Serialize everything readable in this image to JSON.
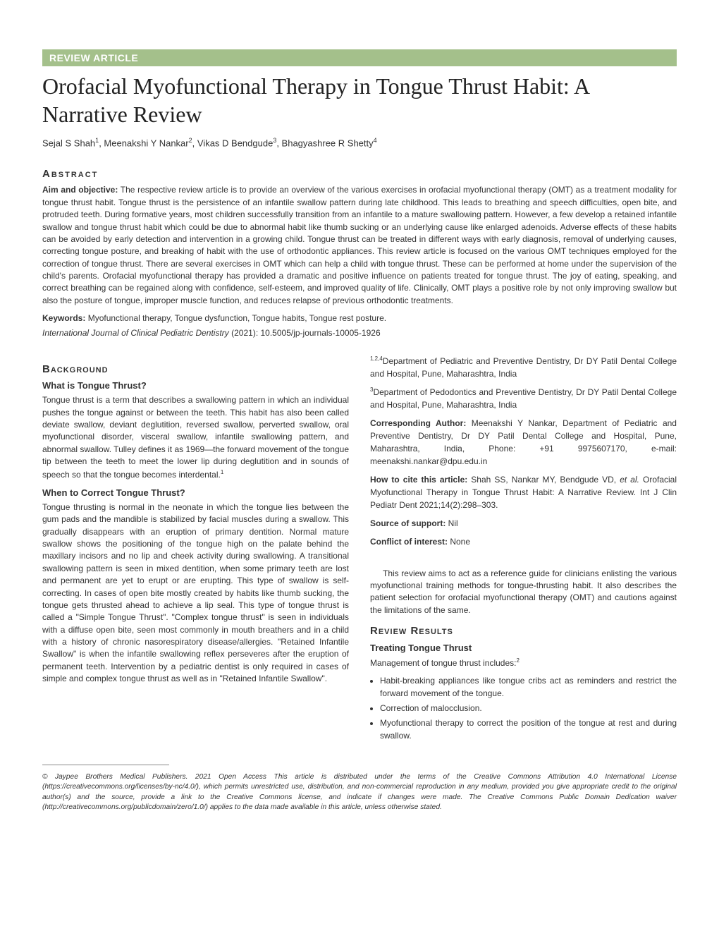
{
  "banner": {
    "label": "REVIEW ARTICLE",
    "bg": "#a4c08b"
  },
  "title": "Orofacial Myofunctional Therapy in Tongue Thrust Habit: A Narrative Review",
  "authors_html": "Sejal S Shah<sup>1</sup>, Meenakshi Y Nankar<sup>2</sup>, Vikas D Bendgude<sup>3</sup>, Bhagyashree R Shetty<sup>4</sup>",
  "abstract": {
    "heading": "Abstract",
    "aim_label": "Aim and objective:",
    "aim_text": " The respective review article is to provide an overview of the various exercises in orofacial myofunctional therapy (OMT) as a treatment modality for tongue thrust habit. Tongue thrust is the persistence of an infantile swallow pattern during late childhood. This leads to breathing and speech difficulties, open bite, and protruded teeth. During formative years, most children successfully transition from an infantile to a mature swallowing pattern. However, a few develop a retained infantile swallow and tongue thrust habit which could be due to abnormal habit like thumb sucking or an underlying cause like enlarged adenoids. Adverse effects of these habits can be avoided by early detection and intervention in a growing child. Tongue thrust can be treated in different ways with early diagnosis, removal of underlying causes, correcting tongue posture, and breaking of habit with the use of orthodontic appliances. This review article is focused on the various OMT techniques employed for the correction of tongue thrust. There are several exercises in OMT which can help a child with tongue thrust. These can be performed at home under the supervision of the child's parents. Orofacial myofunctional therapy has provided a dramatic and positive influence on patients treated for tongue thrust. The joy of eating, speaking, and correct breathing can be regained along with confidence, self-esteem, and improved quality of life. Clinically, OMT plays a positive role by not only improving swallow but also the posture of tongue, improper muscle function, and reduces relapse of previous orthodontic treatments.",
    "keywords_label": "Keywords:",
    "keywords_text": " Myofunctional therapy, Tongue dysfunction, Tongue habits, Tongue rest posture.",
    "journal": "International Journal of Clinical Pediatric Dentistry",
    "year_doi": " (2021): 10.5005/jp-journals-10005-1926"
  },
  "left": {
    "bg_heading": "Background",
    "sub1": "What is Tongue Thrust?",
    "p1": "Tongue thrust is a term that describes a swallowing pattern in which an individual pushes the tongue against or between the teeth. This habit has also been called deviate swallow, deviant deglutition, reversed swallow, perverted swallow, oral myofunctional disorder, visceral swallow, infantile swallowing pattern, and abnormal swallow. Tulley defines it as 1969—the forward movement of the tongue tip between the teeth to meet the lower lip during deglutition and in sounds of speech so that the tongue becomes interdental.",
    "p1_ref": "1",
    "sub2": "When to Correct Tongue Thrust?",
    "p2": "Tongue thrusting is normal in the neonate in which the tongue lies between the gum pads and the mandible is stabilized by facial muscles during a swallow. This gradually disappears with an eruption of primary dentition. Normal mature swallow shows the positioning of the tongue high on the palate behind the maxillary incisors and no lip and cheek activity during swallowing. A transitional swallowing pattern is seen in mixed dentition, when some primary teeth are lost and permanent are yet to erupt or are erupting. This type of swallow is self-correcting. In cases of open bite mostly created by habits like thumb sucking, the tongue gets thrusted ahead to achieve a lip seal. This type of tongue thrust is called a \"Simple Tongue Thrust\". \"Complex tongue thrust\" is seen in individuals with a diffuse open bite, seen most commonly in mouth breathers and in a child with a history of chronic nasorespiratory disease/allergies. \"Retained Infantile Swallow\" is when the infantile swallowing reflex perseveres after the eruption of permanent teeth. Intervention by a pediatric dentist is only required in cases of simple and complex tongue thrust as well as in \"Retained Infantile Swallow\"."
  },
  "right": {
    "affil1_sup": "1,2,4",
    "affil1": "Department of Pediatric and Preventive Dentistry, Dr DY Patil Dental College and Hospital, Pune, Maharashtra, India",
    "affil2_sup": "3",
    "affil2": "Department of Pedodontics and Preventive Dentistry, Dr DY Patil Dental College and Hospital, Pune, Maharashtra, India",
    "corr_label": "Corresponding Author:",
    "corr_text": " Meenakshi Y Nankar, Department of Pediatric and Preventive Dentistry, Dr DY Patil Dental College and Hospital, Pune, Maharashtra, India, Phone: +91 9975607170, e-mail: meenakshi.nankar@dpu.edu.in",
    "cite_label": "How to cite this article:",
    "cite_text_pre": " Shah SS, Nankar MY, Bendgude VD, ",
    "cite_etal": "et al.",
    "cite_text_post": " Orofacial Myofunctional Therapy in Tongue Thrust Habit: A Narrative Review. Int J Clin Pediatr Dent 2021;14(2):298–303.",
    "support_label": "Source of support:",
    "support_val": " Nil",
    "conflict_label": "Conflict of interest:",
    "conflict_val": " None",
    "intro_para": "This review aims to act as a reference guide for clinicians enlisting the various myofunctional training methods for tongue-thrusting habit. It also describes the patient selection for orofacial myofunctional therapy (OMT) and cautions against the limitations of the same.",
    "rr_heading": "Review Results",
    "rr_sub": "Treating Tongue Thrust",
    "rr_lead": "Management of tongue thrust includes:",
    "rr_lead_ref": "2",
    "bullets": [
      "Habit-breaking appliances like tongue cribs act as reminders and restrict the forward movement of the tongue.",
      "Correction of malocclusion.",
      "Myofunctional therapy to correct the position of the tongue at rest and during swallow."
    ]
  },
  "copyright": "© Jaypee Brothers Medical Publishers. 2021 Open Access This article is distributed under the terms of the Creative Commons Attribution 4.0 International License (https://creativecommons.org/licenses/by-nc/4.0/), which permits unrestricted use, distribution, and non-commercial reproduction in any medium, provided you give appropriate credit to the original author(s) and the source, provide a link to the Creative Commons license, and indicate if changes were made. The Creative Commons Public Domain Dedication waiver (http://creativecommons.org/publicdomain/zero/1.0/) applies to the data made available in this article, unless otherwise stated."
}
